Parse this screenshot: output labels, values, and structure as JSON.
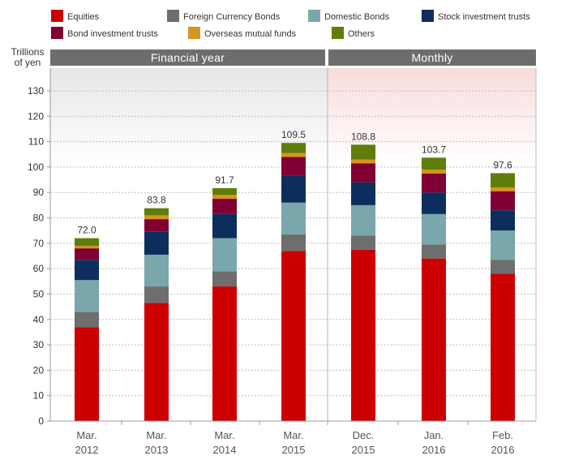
{
  "chart_data": {
    "type": "bar",
    "stacked": true,
    "ylabel": "Trillions of yen",
    "ylabel_lines": [
      "Trillions",
      "of yen"
    ],
    "ylim": [
      0,
      140
    ],
    "yticks": [
      0,
      10,
      20,
      30,
      40,
      50,
      60,
      70,
      80,
      90,
      100,
      110,
      120,
      130
    ],
    "grid": true,
    "sections": [
      {
        "label": "Financial year",
        "categories": 4
      },
      {
        "label": "Monthly",
        "categories": 3
      }
    ],
    "categories": [
      [
        "Mar.",
        "2012"
      ],
      [
        "Mar.",
        "2013"
      ],
      [
        "Mar.",
        "2014"
      ],
      [
        "Mar.",
        "2015"
      ],
      [
        "Dec.",
        "2015"
      ],
      [
        "Jan.",
        "2016"
      ],
      [
        "Feb.",
        "2016"
      ]
    ],
    "series": [
      {
        "name": "Equities",
        "color": "#cc0000",
        "values": [
          37.0,
          46.5,
          53.0,
          67.0,
          67.5,
          64.0,
          58.0
        ]
      },
      {
        "name": "Foreign Currency Bonds",
        "color": "#6e6e6e",
        "values": [
          6.0,
          6.5,
          6.0,
          6.5,
          5.5,
          5.5,
          5.5
        ]
      },
      {
        "name": "Domestic Bonds",
        "color": "#7aa7ab",
        "values": [
          12.5,
          12.5,
          13.0,
          12.5,
          12.0,
          12.0,
          11.5
        ]
      },
      {
        "name": "Stock investment trusts",
        "color": "#0d2e5c",
        "values": [
          8.0,
          9.0,
          9.5,
          10.5,
          9.0,
          8.5,
          8.0
        ]
      },
      {
        "name": "Bond investment trusts",
        "color": "#800033",
        "values": [
          4.5,
          5.0,
          6.0,
          7.5,
          7.5,
          7.5,
          7.5
        ]
      },
      {
        "name": "Overseas mutual funds",
        "color": "#d89320",
        "values": [
          1.0,
          1.5,
          1.5,
          1.5,
          1.5,
          1.5,
          1.5
        ]
      },
      {
        "name": "Others",
        "color": "#5f7d09",
        "values": [
          3.0,
          2.8,
          2.7,
          4.0,
          5.8,
          4.7,
          5.6
        ]
      }
    ],
    "totals": [
      "72.0",
      "83.8",
      "91.7",
      "109.5",
      "108.8",
      "103.7",
      "97.6"
    ]
  }
}
